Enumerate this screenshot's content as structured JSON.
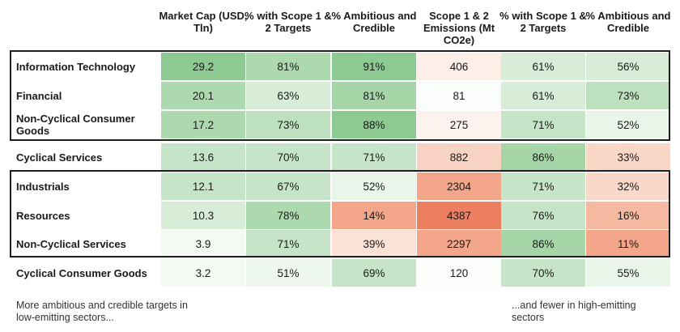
{
  "chart_data": {
    "type": "table",
    "title": "",
    "columns": [
      "Market Cap (USD, Tln)",
      "% with Scope 1 & 2 Targets",
      "% Ambitious and Credible",
      "Scope 1 & 2 Emissions (Mt CO2e)",
      "% with Scope 1 & 2 Targets",
      "% Ambitious and Credible"
    ],
    "rows": [
      {
        "sector": "Information Technology",
        "values": [
          "29.2",
          "81%",
          "91%",
          "406",
          "61%",
          "56%"
        ]
      },
      {
        "sector": "Financial",
        "values": [
          "20.1",
          "63%",
          "81%",
          "81",
          "61%",
          "73%"
        ]
      },
      {
        "sector": "Non-Cyclical Consumer Goods",
        "values": [
          "17.2",
          "73%",
          "88%",
          "275",
          "71%",
          "52%"
        ]
      },
      {
        "sector": "Cyclical Services",
        "values": [
          "13.6",
          "70%",
          "71%",
          "882",
          "86%",
          "33%"
        ]
      },
      {
        "sector": "Industrials",
        "values": [
          "12.1",
          "67%",
          "52%",
          "2304",
          "71%",
          "32%"
        ]
      },
      {
        "sector": "Resources",
        "values": [
          "10.3",
          "78%",
          "14%",
          "4387",
          "76%",
          "16%"
        ]
      },
      {
        "sector": "Non-Cyclical Services",
        "values": [
          "3.9",
          "71%",
          "39%",
          "2297",
          "86%",
          "11%"
        ]
      },
      {
        "sector": "Cyclical  Consumer Goods",
        "values": [
          "3.2",
          "51%",
          "69%",
          "120",
          "70%",
          "55%"
        ]
      }
    ],
    "cell_colors": [
      [
        "#8cca92",
        "#acd9ae",
        "#8cca92",
        "#fdeee7",
        "#d7edd8",
        "#d7edd8"
      ],
      [
        "#acd9ae",
        "#d7edd8",
        "#a6d6a8",
        "#fbfdfb",
        "#d7edd8",
        "#bde1bf"
      ],
      [
        "#acd9ae",
        "#bde1bf",
        "#8cca92",
        "#fdf3ee",
        "#c6e5c8",
        "#e8f5e8"
      ],
      [
        "#c6e5c8",
        "#c6e5c8",
        "#c6e5c8",
        "#f8d2c2",
        "#a6d6a8",
        "#f9d6c6"
      ],
      [
        "#c6e5c8",
        "#c6e5c8",
        "#e8f5e8",
        "#f3a68a",
        "#c6e5c8",
        "#f9d8c9"
      ],
      [
        "#d7edd8",
        "#acd9ae",
        "#f3a68a",
        "#ec7f60",
        "#c6e5c8",
        "#f5b8a0"
      ],
      [
        "#f3faf3",
        "#c6e5c8",
        "#fbe2d6",
        "#f3a68a",
        "#a6d6a8",
        "#f3a68a"
      ],
      [
        "#f3faf3",
        "#eef7ee",
        "#c6e5c8",
        "#fbfdfb",
        "#c6e5c8",
        "#e8f5e8"
      ]
    ]
  },
  "notes": {
    "left": "More ambitious and credible targets in low-emitting sectors...",
    "right": "...and fewer in high-emitting sectors"
  }
}
